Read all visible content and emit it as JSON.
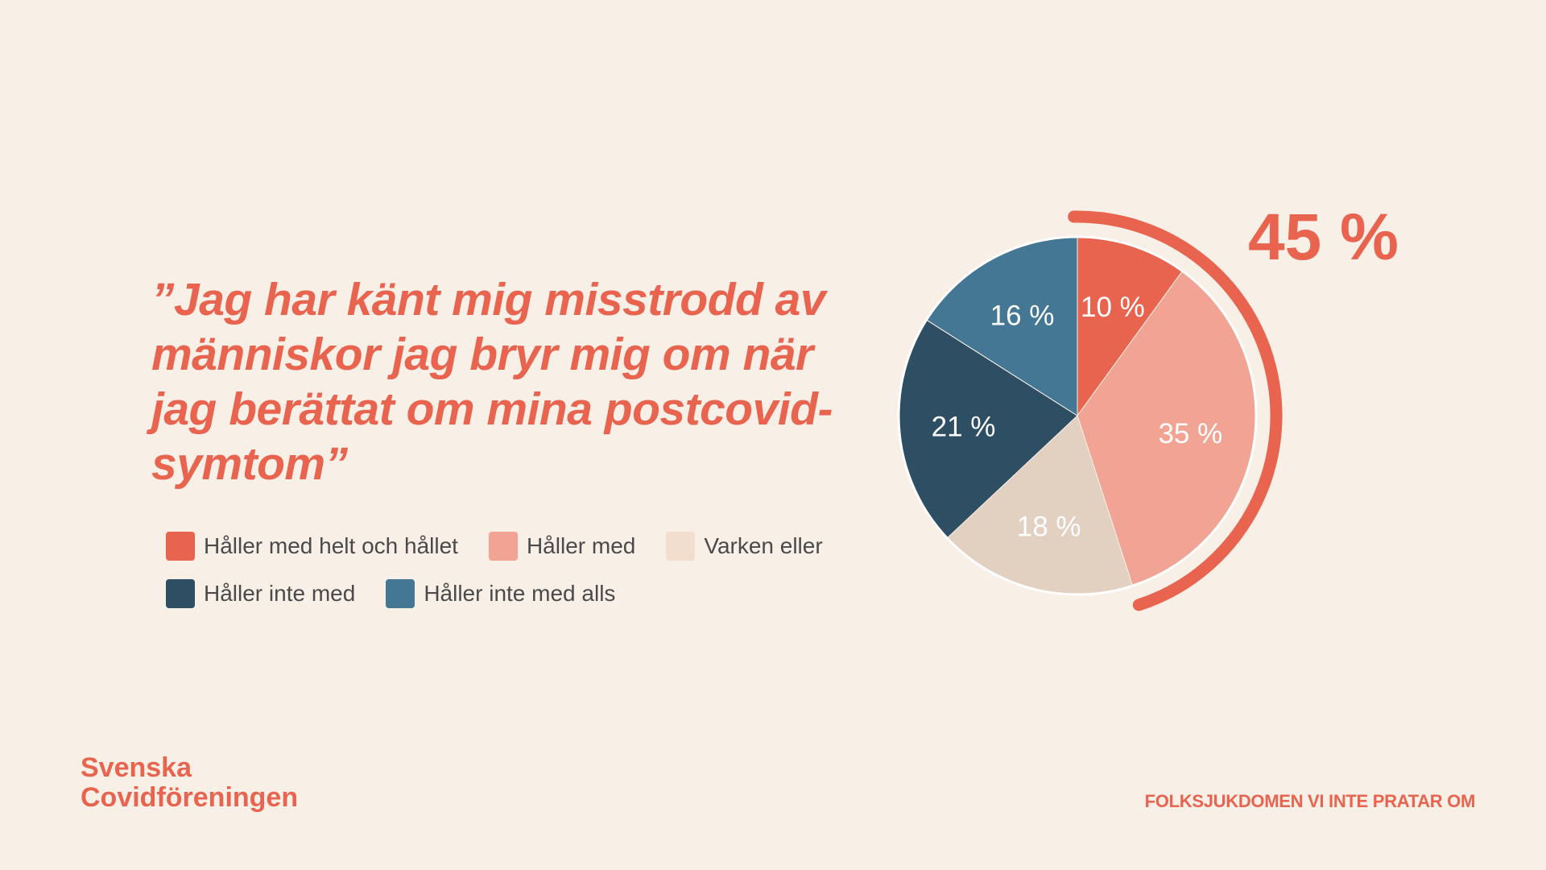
{
  "quote": "”Jag har känt mig misstrodd av människor jag bryr mig om när jag berättat om mina postcovid-symtom”",
  "legend": {
    "row1": [
      {
        "label": "Håller med helt och hållet",
        "color": "#e8644f"
      },
      {
        "label": "Håller med",
        "color": "#f2a494"
      },
      {
        "label": "Varken eller",
        "color": "#f3ddcd"
      }
    ],
    "row2": [
      {
        "label": "Håller inte med",
        "color": "#2e4f63"
      },
      {
        "label": "Håller inte med alls",
        "color": "#447794"
      }
    ]
  },
  "chart_data": {
    "type": "pie",
    "title": "”Jag har känt mig misstrodd av människor jag bryr mig om när jag berättat om mina postcovid-symtom”",
    "categories": [
      "Håller med helt och hållet",
      "Håller med",
      "Varken eller",
      "Håller inte med",
      "Håller inte med alls"
    ],
    "values": [
      10,
      35,
      18,
      21,
      16
    ],
    "labels": [
      "10 %",
      "35 %",
      "18 %",
      "21 %",
      "16 %"
    ],
    "colors": [
      "#e8644f",
      "#f2a494",
      "#e2d0c1",
      "#2e4f63",
      "#447794"
    ],
    "label_colors": [
      "#ffffff",
      "#ffffff",
      "#ffffff",
      "#ffffff",
      "#ffffff"
    ],
    "highlight": {
      "label": "45 %",
      "value": 45,
      "color": "#e8644f"
    }
  },
  "footer": {
    "logo_line1": "Svenska",
    "logo_line2": "Covidföreningen",
    "tagline": "FOLKSJUKDOMEN VI INTE PRATAR OM"
  }
}
